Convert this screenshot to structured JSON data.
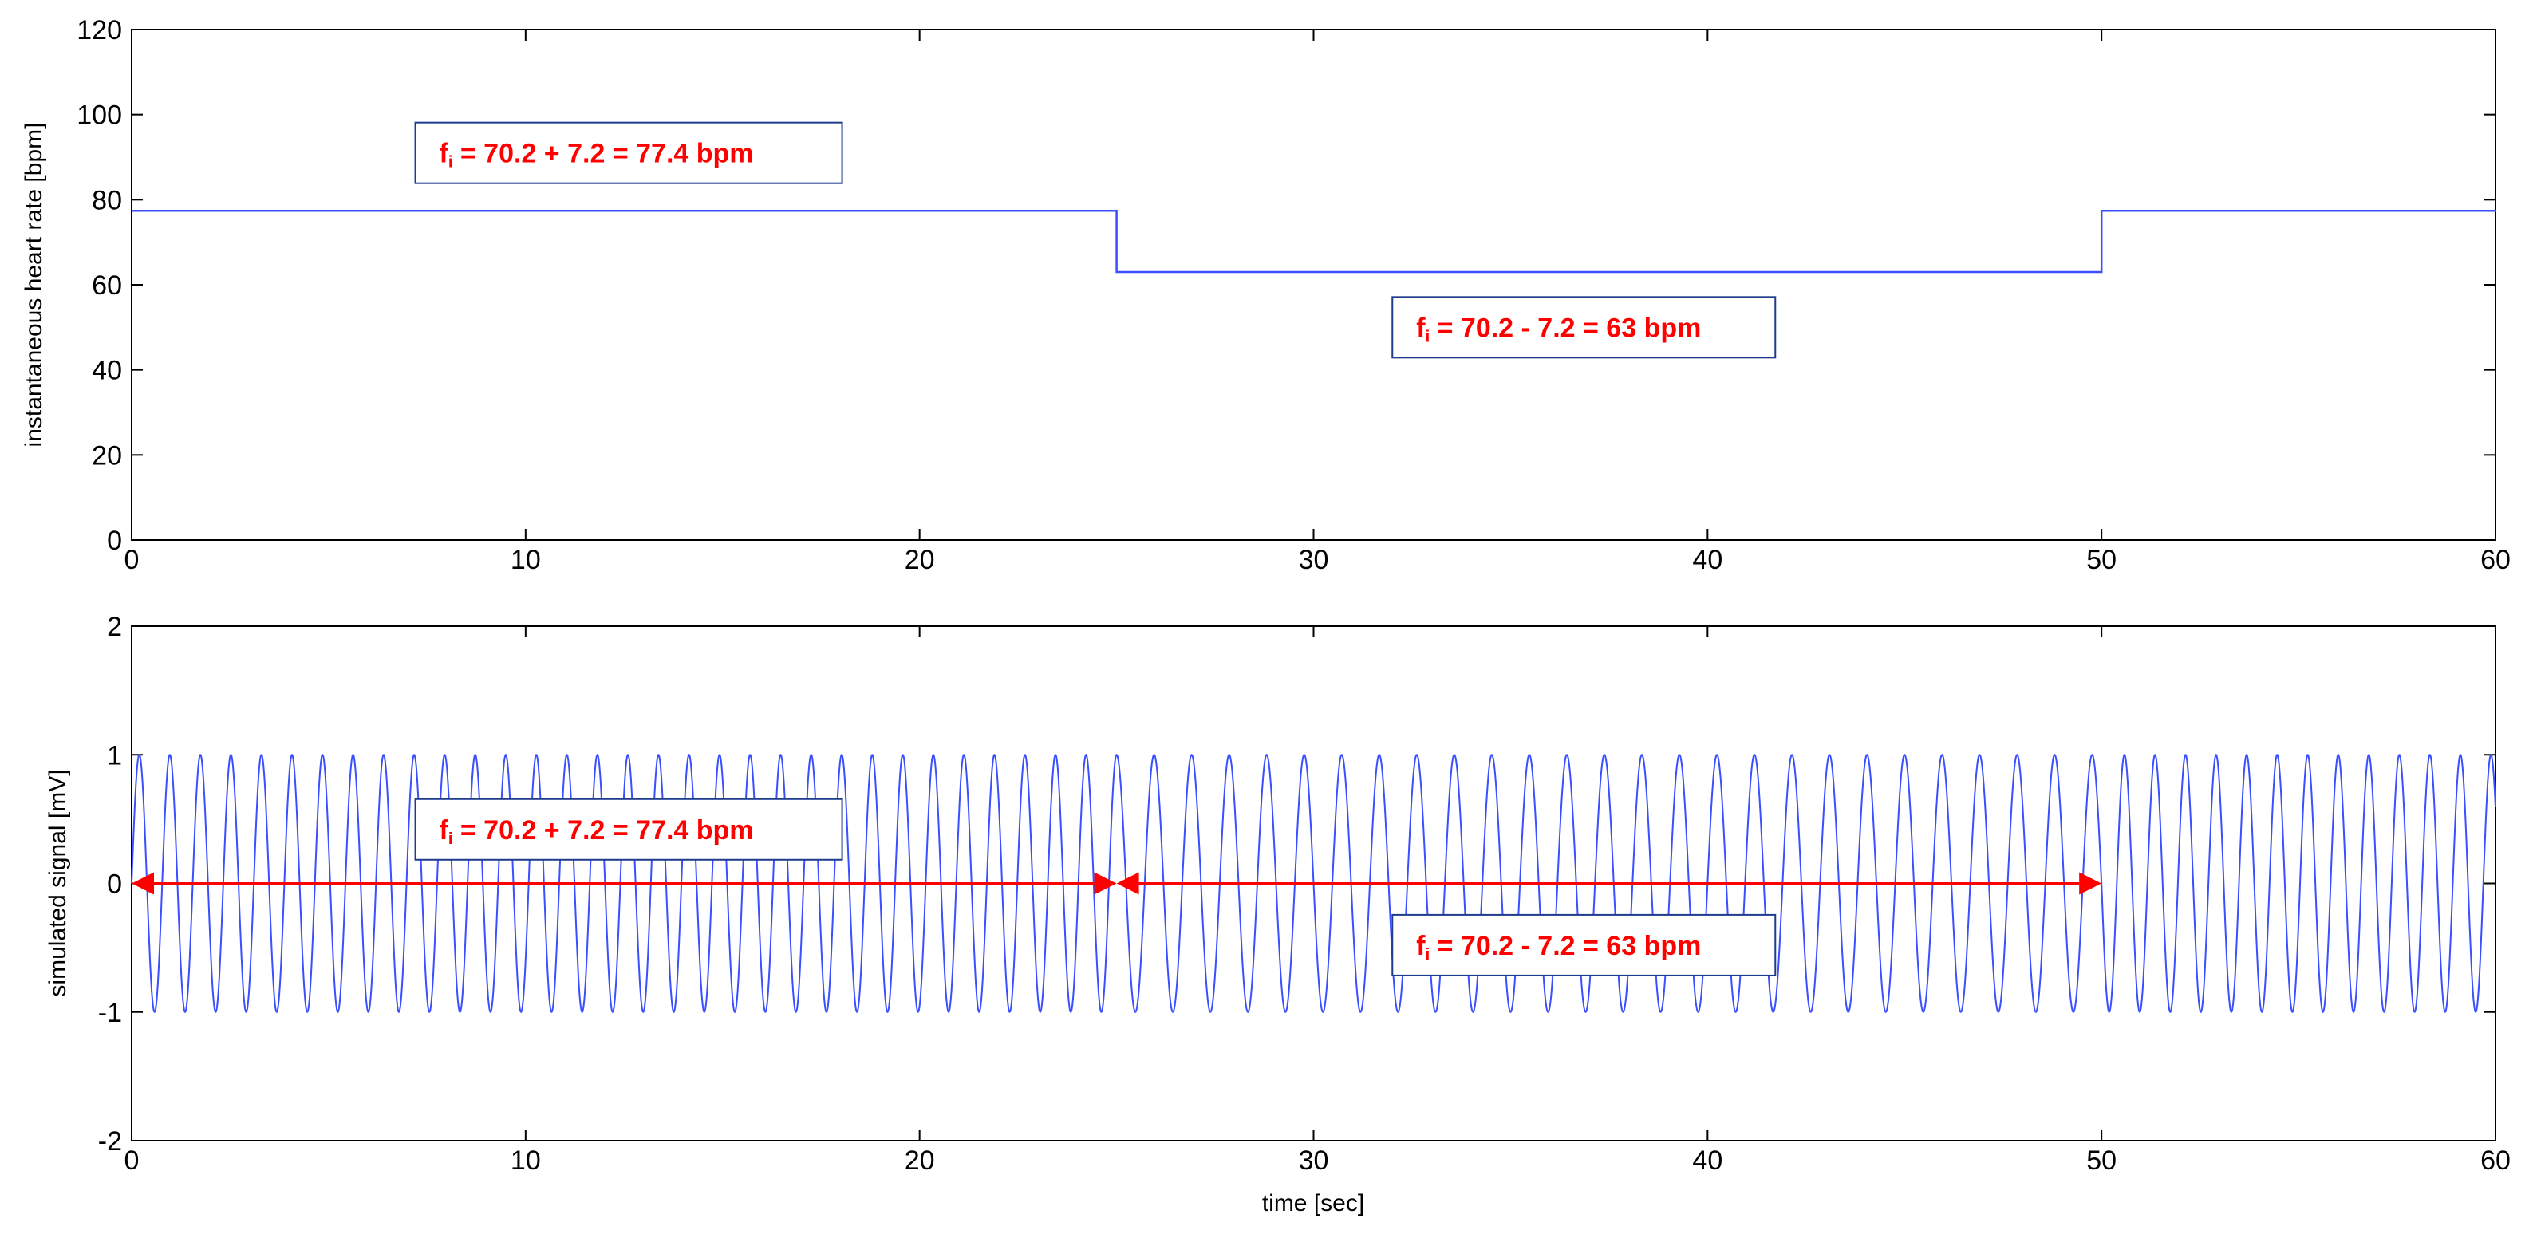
{
  "chart_data": [
    {
      "type": "line",
      "title": "",
      "xlabel": "",
      "ylabel": "instantaneous heart rate [bpm]",
      "xlim": [
        0,
        60
      ],
      "ylim": [
        0,
        120
      ],
      "xticks": [
        0,
        10,
        20,
        30,
        40,
        50,
        60
      ],
      "yticks": [
        0,
        20,
        40,
        60,
        80,
        100,
        120
      ],
      "grid": false,
      "line_color": "#3a4fff",
      "series": [
        {
          "x": [
            0,
            25,
            25,
            50,
            50,
            60
          ],
          "y": [
            77.4,
            77.4,
            63,
            63,
            77.4,
            77.4
          ]
        }
      ],
      "annotations": [
        {
          "prefix": "f",
          "sub": "i",
          "text": " = 70.2 + 7.2 = 77.4 bpm",
          "x": 7.2,
          "y": 91
        },
        {
          "prefix": "f",
          "sub": "i",
          "text": " = 70.2 - 7.2 = 63 bpm",
          "x": 32,
          "y": 50
        }
      ]
    },
    {
      "type": "line",
      "title": "",
      "xlabel": "time [sec]",
      "ylabel": "simulated signal [mV]",
      "xlim": [
        0,
        60
      ],
      "ylim": [
        -2,
        2
      ],
      "xticks": [
        0,
        10,
        20,
        30,
        40,
        50,
        60
      ],
      "yticks": [
        -2,
        -1,
        0,
        1,
        2
      ],
      "grid": false,
      "line_color": "#3a4fff",
      "signal": {
        "shape": "sine",
        "amplitude": 1,
        "segments": [
          {
            "t_start": 0,
            "t_end": 25,
            "rate_bpm": 77.4
          },
          {
            "t_start": 25,
            "t_end": 50,
            "rate_bpm": 63
          },
          {
            "t_start": 50,
            "t_end": 60,
            "rate_bpm": 77.4
          }
        ]
      },
      "arrows": [
        {
          "x_start": 0,
          "x_end": 25,
          "y": 0,
          "color": "#ff0000"
        },
        {
          "x_start": 25,
          "x_end": 50,
          "y": 0,
          "color": "#ff0000"
        }
      ],
      "annotations": [
        {
          "prefix": "f",
          "sub": "i",
          "text": " = 70.2 + 7.2 = 77.4 bpm",
          "x": 7.2,
          "y": 0.42
        },
        {
          "prefix": "f",
          "sub": "i",
          "text": " = 70.2 - 7.2 = 63 bpm",
          "x": 32,
          "y": -0.48
        }
      ]
    }
  ]
}
